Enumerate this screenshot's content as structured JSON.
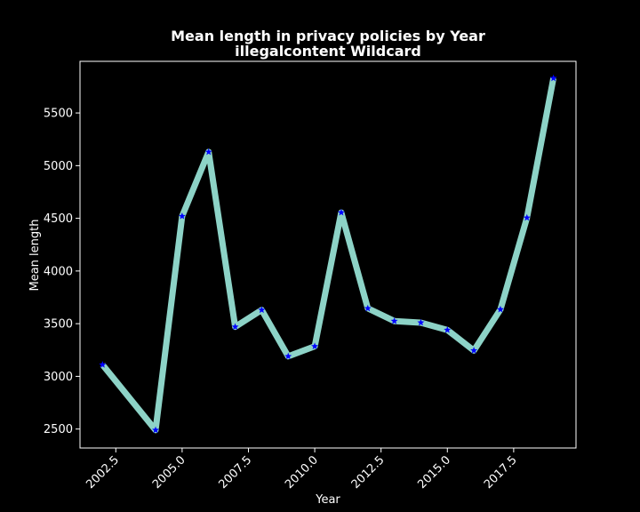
{
  "chart_data": {
    "type": "line",
    "title": "Mean length in privacy policies by Year",
    "subtitle": "illegalcontent Wildcard",
    "xlabel": "Year",
    "ylabel": "Mean length",
    "xlim": [
      2001.15,
      2019.85
    ],
    "ylim": [
      2320,
      5990
    ],
    "x_ticks": [
      2002.5,
      2005.0,
      2007.5,
      2010.0,
      2012.5,
      2015.0,
      2017.5
    ],
    "x_tick_labels": [
      "2002.5",
      "2005.0",
      "2007.5",
      "2010.0",
      "2012.5",
      "2015.0",
      "2017.5"
    ],
    "y_ticks": [
      2500,
      3000,
      3500,
      4000,
      4500,
      5000,
      5500
    ],
    "y_tick_labels": [
      "2500",
      "3000",
      "3500",
      "4000",
      "4500",
      "5000",
      "5500"
    ],
    "grid": false,
    "background": "#000000",
    "line_color": "#8dd3c7",
    "marker_color": "#0000ff",
    "marker": "star",
    "series": [
      {
        "x": [
          2002,
          2004,
          2005,
          2006,
          2007,
          2008,
          2009,
          2010,
          2011,
          2012,
          2013,
          2014,
          2015,
          2016,
          2017,
          2018,
          2019
        ],
        "values": [
          3110,
          2490,
          4520,
          5130,
          3470,
          3630,
          3190,
          3285,
          4555,
          3645,
          3525,
          3510,
          3440,
          3245,
          3635,
          4505,
          5830
        ]
      }
    ]
  }
}
